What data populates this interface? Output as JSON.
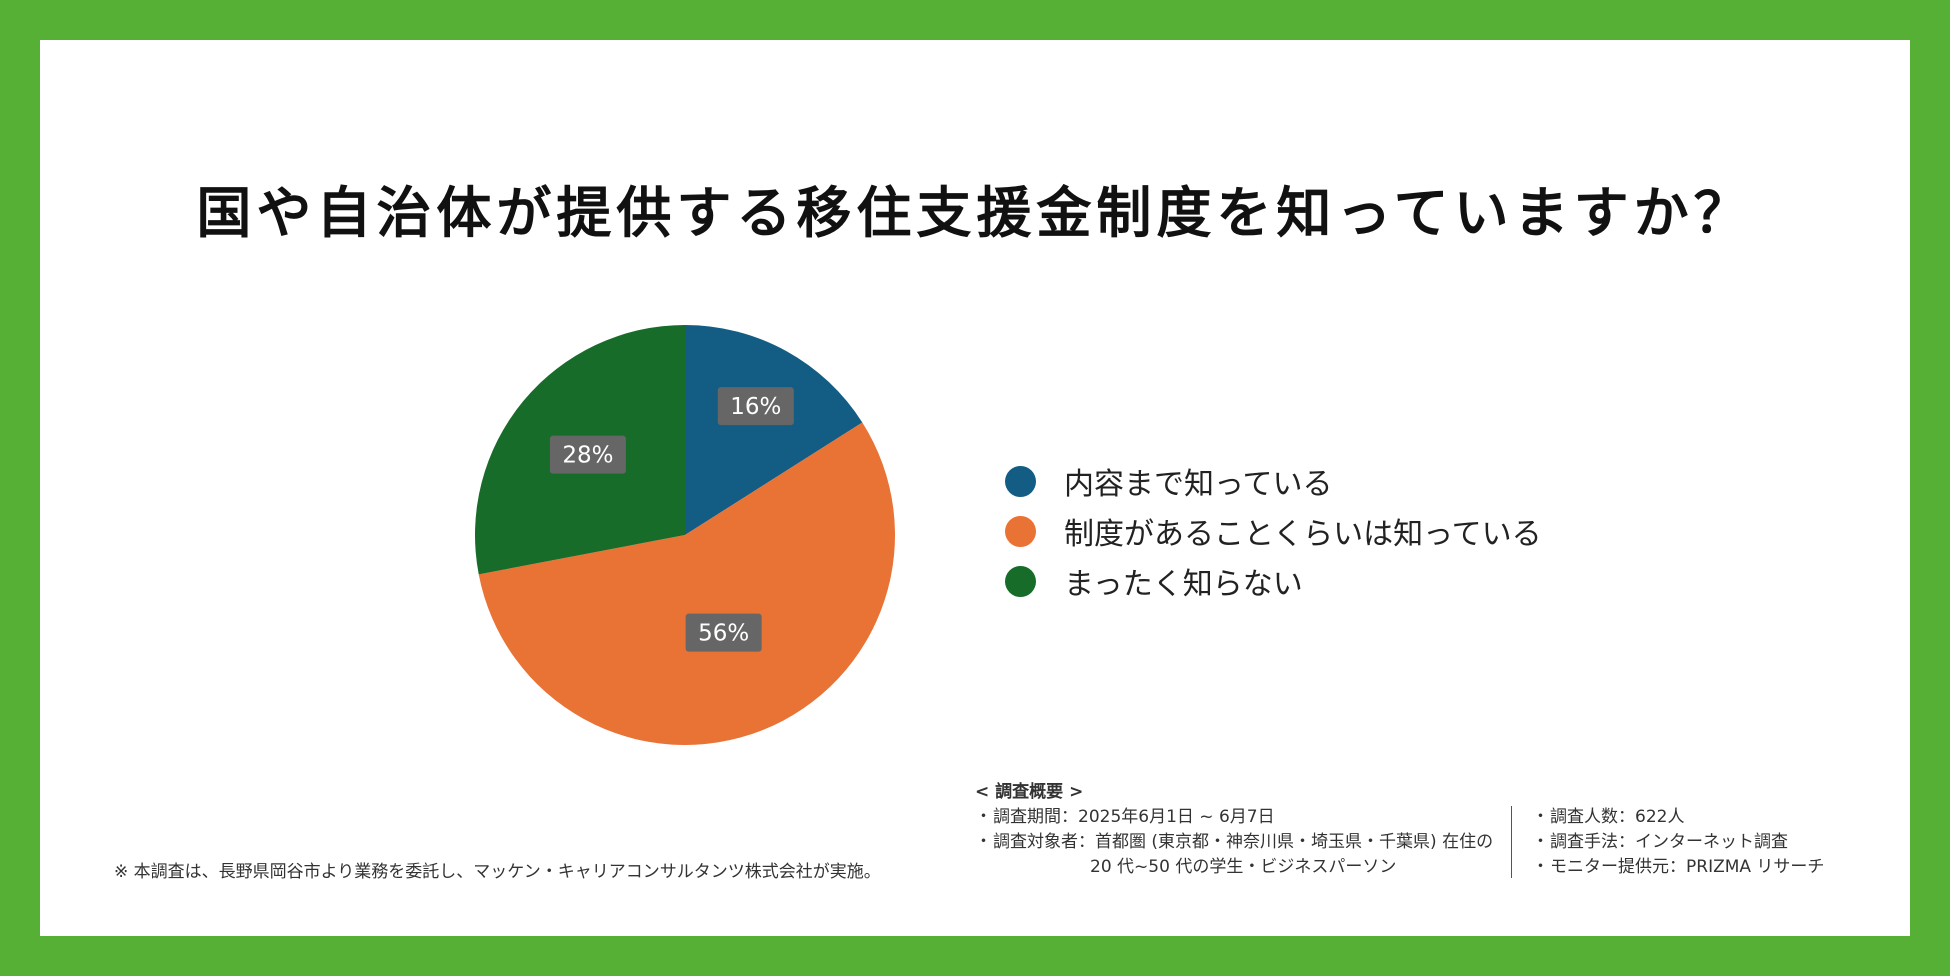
{
  "chart_data": {
    "type": "pie",
    "title": "国や自治体が提供する移住支援金制度を知っていますか？",
    "slices": [
      {
        "label": "内容まで知っている",
        "value": 16,
        "display": "16%",
        "color": "#135d85"
      },
      {
        "label": "制度があることくらいは知っている",
        "value": 56,
        "display": "56%",
        "color": "#e97235"
      },
      {
        "label": "まったく知らない",
        "value": 28,
        "display": "28%",
        "color": "#186c29"
      }
    ],
    "legend_position": "right"
  },
  "colors": {
    "border": "#55b035",
    "background": "#ffffff",
    "label_box": "#666666"
  },
  "footer": {
    "note": "※ 本調査は、長野県岡谷市より業務を委託し、マッケン・キャリアコンサルタンツ株式会社が実施。",
    "summary_heading": "< 調査概要 >",
    "period": "調査期間：2025年6月1日 ~ 6月7日",
    "target_line1": "調査対象者：首都圏 (東京都・神奈川県・埼玉県・千葉県) 在住の",
    "target_line2": "20 代~50 代の学生・ビジネスパーソン",
    "respondents": "調査人数：622人",
    "method": "調査手法：インターネット調査",
    "provider": "モニター提供元：PRIZMA リサーチ"
  }
}
